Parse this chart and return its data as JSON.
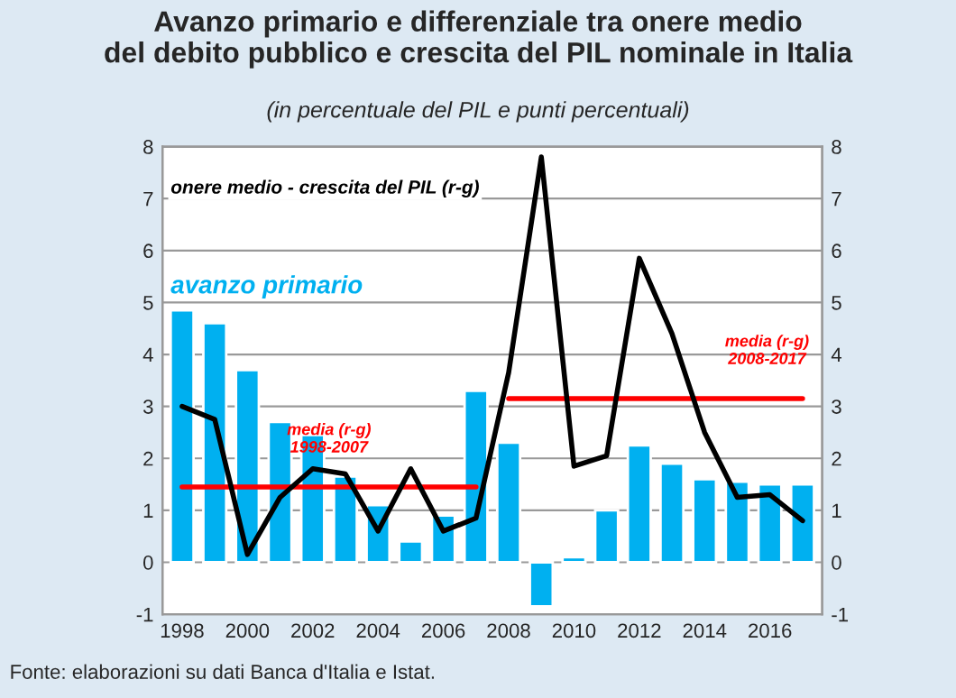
{
  "chart_data": {
    "type": "bar",
    "title": "Avanzo primario e differenziale tra onere medio\ndel debito pubblico e crescita del PIL nominale in Italia",
    "subtitle": "(in percentuale del PIL e punti percentuali)",
    "categories": [
      "1998",
      null,
      "2000",
      null,
      "2002",
      null,
      "2004",
      null,
      "2006",
      null,
      "2008",
      null,
      "2010",
      null,
      "2012",
      null,
      "2014",
      null,
      "2016",
      null
    ],
    "series": [
      {
        "name": "avanzo primario",
        "color": "#00b0f0",
        "values": [
          4.85,
          4.6,
          3.7,
          2.7,
          2.45,
          1.65,
          1.1,
          0.4,
          0.9,
          3.3,
          2.3,
          -0.85,
          0.1,
          1.0,
          2.25,
          1.9,
          1.6,
          1.55,
          1.5,
          1.5
        ]
      },
      {
        "name": "onere medio - crescita del PIL (r-g)",
        "type": "line",
        "axis": "y2",
        "color": "#000000",
        "values": [
          3.0,
          2.75,
          0.15,
          1.25,
          1.8,
          1.7,
          0.6,
          1.8,
          0.6,
          0.85,
          3.65,
          7.8,
          1.85,
          2.05,
          5.85,
          4.4,
          2.5,
          1.25,
          1.3,
          0.8
        ]
      },
      {
        "name": "media (r-g)\n1998-2007",
        "type": "line",
        "color": "#ff0000",
        "values": [
          1.45,
          1.45,
          1.45,
          1.45,
          1.45,
          1.45,
          1.45,
          1.45,
          1.45,
          1.45,
          null,
          null,
          null,
          null,
          null,
          null,
          null,
          null,
          null,
          null
        ]
      },
      {
        "name": "media (r-g)\n2008-2017",
        "type": "line",
        "color": "#ff0000",
        "values": [
          null,
          null,
          null,
          null,
          null,
          null,
          null,
          null,
          null,
          null,
          3.15,
          3.15,
          3.15,
          3.15,
          3.15,
          3.15,
          3.15,
          3.15,
          3.15,
          3.15
        ]
      }
    ],
    "ylim": [
      -1,
      8
    ],
    "yticks": [
      -1,
      0,
      1,
      2,
      3,
      4,
      5,
      6,
      7,
      8
    ],
    "y2lim": [
      -1,
      8
    ],
    "y2ticks": [
      -1,
      0,
      1,
      2,
      3,
      4,
      5,
      6,
      7,
      8
    ],
    "grid": "y",
    "legend": false,
    "annotations": [
      "Fonte: elaborazioni su dati Banca d'Italia e Istat."
    ]
  }
}
